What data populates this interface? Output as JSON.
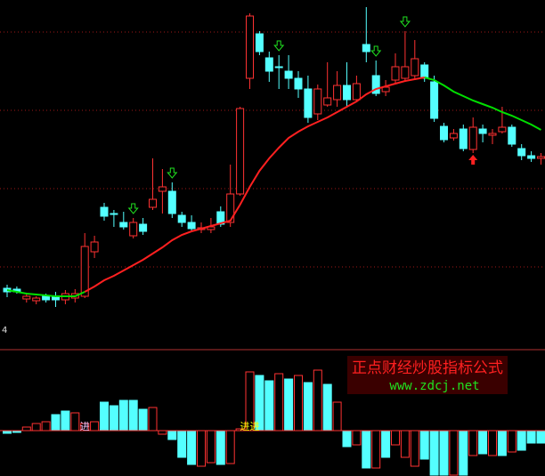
{
  "chart_data": [
    {
      "type": "candlestick",
      "open": [
        76,
        75,
        64,
        62,
        67,
        67,
        63,
        65,
        67,
        117,
        167,
        160,
        150,
        135,
        148,
        167,
        185,
        185,
        158,
        150,
        142,
        142,
        162,
        150,
        182,
        312,
        362,
        335,
        325,
        320,
        312,
        300,
        272,
        282,
        288,
        304,
        288,
        350,
        315,
        297,
        310,
        312,
        315,
        327,
        308,
        258,
        245,
        255,
        232,
        255,
        248,
        252,
        257,
        233,
        225,
        222
      ],
      "high": [
        80,
        78,
        70,
        67,
        70,
        72,
        74,
        75,
        138,
        135,
        172,
        164,
        162,
        155,
        155,
        222,
        210,
        195,
        162,
        158,
        150,
        155,
        168,
        215,
        280,
        385,
        365,
        342,
        338,
        338,
        320,
        315,
        305,
        330,
        320,
        330,
        315,
        392,
        332,
        310,
        340,
        365,
        355,
        330,
        315,
        262,
        255,
        260,
        268,
        260,
        255,
        280,
        260,
        238,
        230,
        228
      ],
      "low": [
        66,
        70,
        60,
        58,
        60,
        55,
        58,
        60,
        65,
        110,
        152,
        145,
        142,
        132,
        136,
        164,
        160,
        155,
        145,
        140,
        138,
        138,
        145,
        145,
        180,
        300,
        338,
        308,
        300,
        300,
        290,
        262,
        265,
        280,
        280,
        280,
        285,
        330,
        292,
        292,
        305,
        308,
        310,
        308,
        263,
        240,
        242,
        230,
        228,
        240,
        238,
        250,
        235,
        220,
        218,
        215
      ],
      "close": [
        72,
        72,
        67,
        65,
        63,
        63,
        70,
        70,
        123,
        128,
        157,
        160,
        145,
        150,
        140,
        176,
        190,
        160,
        150,
        143,
        144,
        145,
        148,
        182,
        278,
        382,
        342,
        320,
        325,
        312,
        300,
        268,
        300,
        290,
        304,
        288,
        306,
        342,
        295,
        302,
        325,
        325,
        334,
        312,
        267,
        243,
        250,
        233,
        257,
        250,
        250,
        257,
        238,
        225,
        222,
        224
      ],
      "up_color": "#ff3232",
      "down_color": "#54ffff",
      "series": [
        {
          "color": "#00e000",
          "values": [
            74,
            72,
            70,
            69,
            68,
            67,
            67,
            67,
            72,
            null,
            null,
            null,
            null,
            null,
            null,
            null,
            null,
            null,
            null,
            null,
            null,
            null,
            null,
            null,
            null,
            null,
            null,
            null,
            null,
            null,
            null,
            null,
            null,
            null,
            null,
            null,
            null,
            null,
            null,
            null,
            null,
            null,
            null,
            313,
            310,
            304,
            297,
            292,
            287,
            283,
            279,
            274,
            270,
            265,
            260,
            254
          ]
        },
        {
          "color": "#ff2020",
          "values": [
            null,
            null,
            null,
            null,
            null,
            null,
            null,
            null,
            72,
            78,
            85,
            90,
            96,
            102,
            108,
            115,
            122,
            130,
            136,
            140,
            143,
            146,
            149,
            152,
            170,
            190,
            208,
            222,
            234,
            245,
            252,
            258,
            263,
            268,
            274,
            280,
            286,
            294,
            300,
            303,
            306,
            309,
            311,
            313,
            null,
            null,
            null,
            null,
            null,
            null,
            null,
            null,
            null,
            null,
            null,
            null
          ]
        }
      ],
      "down_arrows": [
        13,
        17,
        28,
        38,
        41
      ],
      "down_arrow_color": "#20e020",
      "up_arrows": [
        48
      ],
      "up_arrow_color": "#ff2020",
      "ylim": [
        10,
        400
      ],
      "yticks": [
        364,
        276,
        188,
        100
      ],
      "grid": true,
      "grid_color": "#a01818",
      "corner_label": "4"
    },
    {
      "type": "bar",
      "values": [
        -3,
        -2,
        4,
        8,
        10,
        18,
        22,
        20,
        8,
        10,
        32,
        28,
        34,
        34,
        24,
        26,
        -4,
        -10,
        -30,
        -38,
        -40,
        -36,
        -38,
        -37,
        2,
        66,
        62,
        56,
        64,
        58,
        62,
        54,
        68,
        52,
        32,
        -18,
        -16,
        -42,
        -42,
        -30,
        -16,
        -30,
        -40,
        -32,
        -50,
        -50,
        -50,
        -50,
        -28,
        -26,
        -28,
        -28,
        -24,
        -22,
        -14,
        -14
      ],
      "colors": [
        "#54ffff",
        "#54ffff",
        "#ff3232",
        "#ff3232",
        "#ff3232",
        "#54ffff",
        "#54ffff",
        "#ff3232",
        "#ff3232",
        "#ff3232",
        "#54ffff",
        "#54ffff",
        "#54ffff",
        "#54ffff",
        "#54ffff",
        "#ff3232",
        "#ff3232",
        "#54ffff",
        "#54ffff",
        "#54ffff",
        "#ff3232",
        "#ff3232",
        "#54ffff",
        "#ff3232",
        "#ff3232",
        "#ff3232",
        "#54ffff",
        "#54ffff",
        "#ff3232",
        "#54ffff",
        "#ff3232",
        "#54ffff",
        "#ff3232",
        "#54ffff",
        "#ff3232",
        "#54ffff",
        "#ff3232",
        "#54ffff",
        "#ff3232",
        "#54ffff",
        "#ff3232",
        "#ff3232",
        "#ff3232",
        "#54ffff",
        "#54ffff",
        "#54ffff",
        "#ff3232",
        "#54ffff",
        "#ff3232",
        "#54ffff",
        "#ff3232",
        "#54ffff",
        "#ff3232",
        "#54ffff",
        "#54ffff",
        "#54ffff"
      ],
      "ylim": [
        -51,
        89
      ],
      "annotations": [
        {
          "text": "进",
          "index": 8,
          "color": "#ffc8ff"
        },
        {
          "text": "进进",
          "index": 25,
          "color": "#ffff00"
        }
      ],
      "watermark": {
        "title": "正点财经炒股指标公式",
        "url": "www.zdcj.net"
      }
    }
  ]
}
